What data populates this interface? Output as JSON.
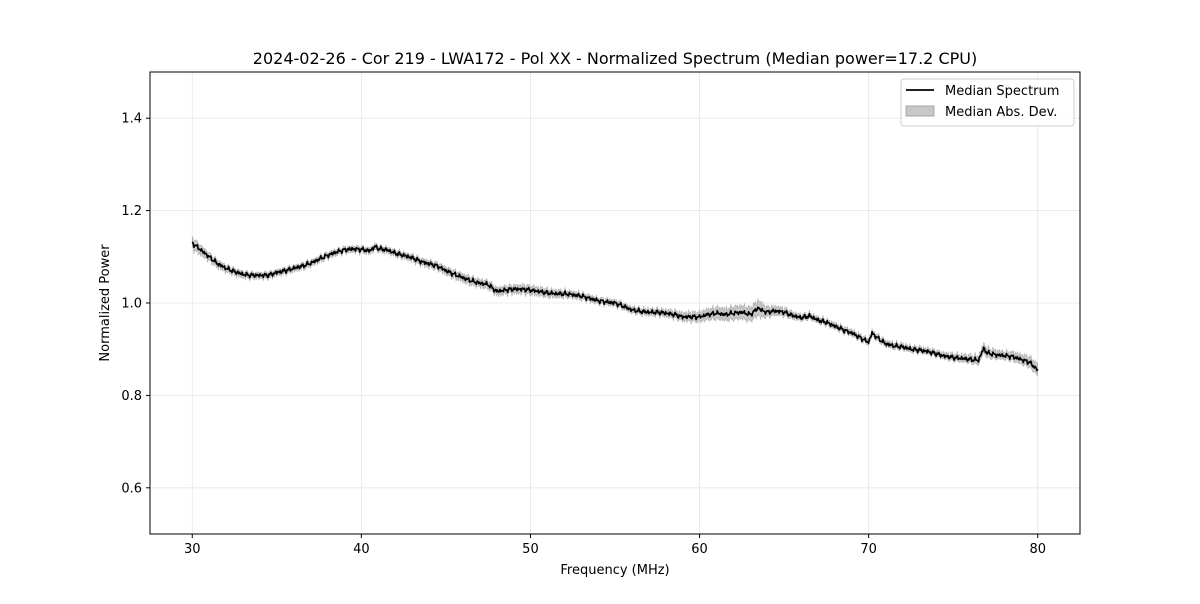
{
  "chart_data": {
    "type": "line",
    "title": "2024-02-26 - Cor 219 - LWA172 - Pol XX - Normalized Spectrum (Median power=17.2 CPU)",
    "xlabel": "Frequency (MHz)",
    "ylabel": "Normalized Power",
    "xlim": [
      27.5,
      82.5
    ],
    "ylim": [
      0.5,
      1.5
    ],
    "xticks": [
      30,
      40,
      50,
      60,
      70,
      80
    ],
    "xtick_labels": [
      "30",
      "40",
      "50",
      "60",
      "70",
      "80"
    ],
    "yticks": [
      0.6,
      0.8,
      1.0,
      1.2,
      1.4
    ],
    "ytick_labels": [
      "0.6",
      "0.8",
      "1.0",
      "1.2",
      "1.4"
    ],
    "grid": true,
    "legend_position": "top-right",
    "series": [
      {
        "name": "Median Spectrum",
        "color": "#000000",
        "x": [
          30.0,
          30.5,
          31.0,
          31.5,
          32.0,
          32.5,
          33.0,
          33.5,
          34.0,
          34.5,
          35.0,
          35.5,
          36.0,
          36.5,
          37.0,
          37.5,
          38.0,
          38.5,
          39.0,
          39.5,
          40.0,
          40.5,
          40.8,
          41.0,
          41.5,
          42.0,
          42.5,
          43.0,
          43.5,
          44.0,
          44.5,
          45.0,
          45.5,
          46.0,
          46.5,
          47.0,
          47.5,
          48.0,
          48.5,
          49.0,
          49.5,
          50.0,
          50.5,
          51.0,
          51.5,
          52.0,
          52.5,
          53.0,
          53.5,
          54.0,
          54.5,
          55.0,
          55.5,
          56.0,
          56.5,
          57.0,
          57.5,
          58.0,
          58.5,
          59.0,
          59.5,
          60.0,
          60.5,
          61.0,
          61.5,
          62.0,
          62.5,
          63.0,
          63.5,
          63.6,
          64.0,
          64.5,
          65.0,
          65.5,
          66.0,
          66.5,
          67.0,
          67.5,
          68.0,
          68.5,
          69.0,
          69.5,
          70.0,
          70.2,
          70.5,
          71.0,
          71.5,
          72.0,
          72.5,
          73.0,
          73.5,
          74.0,
          74.5,
          75.0,
          75.5,
          76.0,
          76.5,
          76.8,
          77.0,
          77.5,
          78.0,
          78.5,
          79.0,
          79.5,
          80.0
        ],
        "y": [
          1.13,
          1.115,
          1.1,
          1.085,
          1.075,
          1.068,
          1.062,
          1.06,
          1.06,
          1.06,
          1.066,
          1.07,
          1.075,
          1.08,
          1.086,
          1.095,
          1.103,
          1.11,
          1.115,
          1.117,
          1.116,
          1.113,
          1.122,
          1.118,
          1.115,
          1.108,
          1.103,
          1.098,
          1.09,
          1.085,
          1.08,
          1.07,
          1.062,
          1.055,
          1.048,
          1.043,
          1.04,
          1.025,
          1.028,
          1.03,
          1.03,
          1.028,
          1.025,
          1.022,
          1.02,
          1.02,
          1.018,
          1.015,
          1.01,
          1.005,
          1.002,
          1.0,
          0.993,
          0.985,
          0.982,
          0.98,
          0.98,
          0.978,
          0.975,
          0.97,
          0.97,
          0.97,
          0.975,
          0.978,
          0.975,
          0.978,
          0.98,
          0.975,
          0.99,
          0.985,
          0.98,
          0.983,
          0.98,
          0.973,
          0.968,
          0.972,
          0.963,
          0.958,
          0.95,
          0.942,
          0.935,
          0.925,
          0.915,
          0.935,
          0.925,
          0.912,
          0.907,
          0.905,
          0.9,
          0.898,
          0.895,
          0.89,
          0.885,
          0.882,
          0.88,
          0.878,
          0.876,
          0.902,
          0.892,
          0.888,
          0.886,
          0.884,
          0.878,
          0.872,
          0.855
        ]
      },
      {
        "name": "Median Abs. Dev.",
        "color": "#c8c8c8",
        "kind": "band",
        "x": [
          30.0,
          31.0,
          32.0,
          34.0,
          36.0,
          38.0,
          40.0,
          42.0,
          44.0,
          46.0,
          48.0,
          50.0,
          52.0,
          54.0,
          56.0,
          58.0,
          60.0,
          61.0,
          62.0,
          63.0,
          63.6,
          64.0,
          66.0,
          68.0,
          70.0,
          72.0,
          74.0,
          76.0,
          77.0,
          78.0,
          80.0
        ],
        "half_width": [
          0.012,
          0.008,
          0.007,
          0.006,
          0.006,
          0.006,
          0.006,
          0.006,
          0.007,
          0.008,
          0.008,
          0.009,
          0.007,
          0.006,
          0.006,
          0.007,
          0.01,
          0.012,
          0.013,
          0.014,
          0.016,
          0.01,
          0.006,
          0.006,
          0.006,
          0.006,
          0.006,
          0.008,
          0.01,
          0.008,
          0.012
        ]
      }
    ]
  }
}
